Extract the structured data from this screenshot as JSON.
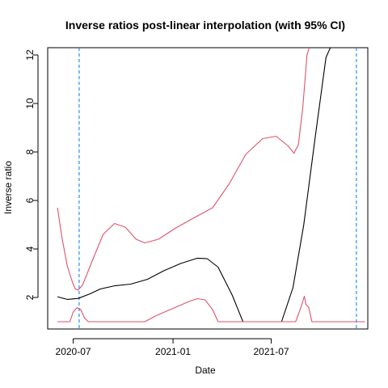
{
  "chart_data": {
    "type": "line",
    "title": "Inverse ratios post-linear interpolation (with 95% CI)",
    "xlabel": "Date",
    "ylabel": "Inverse ratio",
    "x_ticks": [
      "2020-07",
      "2021-01",
      "2021-07"
    ],
    "x_tick_dates": [
      "2020-07-01",
      "2021-01-01",
      "2021-07-01"
    ],
    "y_ticks": [
      "2",
      "4",
      "6",
      "8",
      "10",
      "12"
    ],
    "xlim": [
      "2020-05-15",
      "2021-12-26"
    ],
    "ylim": [
      0.7,
      12.3
    ],
    "grid": false,
    "legend": "none",
    "vlines": [
      {
        "x": "2020-07-12",
        "color": "#1E90FF",
        "style": "dashed"
      },
      {
        "x": "2021-12-05",
        "color": "#1E90FF",
        "style": "dashed"
      }
    ],
    "series": [
      {
        "color": "#000000",
        "points": [
          [
            "2020-06-02",
            2.03
          ],
          [
            "2020-06-20",
            1.92
          ],
          [
            "2020-07-10",
            1.96
          ],
          [
            "2020-08-01",
            2.15
          ],
          [
            "2020-08-20",
            2.35
          ],
          [
            "2020-09-15",
            2.48
          ],
          [
            "2020-10-15",
            2.55
          ],
          [
            "2020-11-15",
            2.75
          ],
          [
            "2020-12-15",
            3.1
          ],
          [
            "2021-01-15",
            3.4
          ],
          [
            "2021-02-15",
            3.62
          ],
          [
            "2021-03-05",
            3.6
          ],
          [
            "2021-03-25",
            3.25
          ],
          [
            "2021-04-20",
            2.1
          ],
          [
            "2021-05-10",
            1.0
          ],
          [
            "2021-07-20",
            1.0
          ],
          [
            "2021-08-10",
            2.4
          ],
          [
            "2021-08-30",
            5.0
          ],
          [
            "2021-09-20",
            8.6
          ],
          [
            "2021-10-10",
            11.9
          ],
          [
            "2021-10-20",
            12.4
          ]
        ]
      },
      {
        "color": "#DF536B",
        "points": [
          [
            "2020-06-02",
            5.7
          ],
          [
            "2020-06-10",
            4.5
          ],
          [
            "2020-06-20",
            3.3
          ],
          [
            "2020-06-30",
            2.6
          ],
          [
            "2020-07-05",
            2.35
          ],
          [
            "2020-07-10",
            2.3
          ],
          [
            "2020-07-18",
            2.5
          ],
          [
            "2020-08-05",
            3.5
          ],
          [
            "2020-08-25",
            4.6
          ],
          [
            "2020-09-15",
            5.05
          ],
          [
            "2020-10-05",
            4.9
          ],
          [
            "2020-10-25",
            4.4
          ],
          [
            "2020-11-10",
            4.25
          ],
          [
            "2020-12-05",
            4.4
          ],
          [
            "2021-01-05",
            4.85
          ],
          [
            "2021-02-10",
            5.3
          ],
          [
            "2021-03-15",
            5.7
          ],
          [
            "2021-04-15",
            6.7
          ],
          [
            "2021-05-15",
            7.9
          ],
          [
            "2021-06-15",
            8.55
          ],
          [
            "2021-07-10",
            8.65
          ],
          [
            "2021-08-01",
            8.25
          ],
          [
            "2021-08-12",
            7.95
          ],
          [
            "2021-08-20",
            8.3
          ],
          [
            "2021-08-28",
            9.8
          ],
          [
            "2021-09-05",
            12.0
          ],
          [
            "2021-09-12",
            12.5
          ]
        ]
      },
      {
        "color": "#DF536B",
        "points": [
          [
            "2020-06-02",
            1.0
          ],
          [
            "2020-06-25",
            1.0
          ],
          [
            "2020-07-01",
            1.4
          ],
          [
            "2020-07-08",
            1.58
          ],
          [
            "2020-07-15",
            1.5
          ],
          [
            "2020-07-22",
            1.15
          ],
          [
            "2020-07-29",
            1.0
          ],
          [
            "2020-11-10",
            1.0
          ],
          [
            "2020-12-01",
            1.25
          ],
          [
            "2021-01-01",
            1.55
          ],
          [
            "2021-02-01",
            1.85
          ],
          [
            "2021-02-15",
            1.95
          ],
          [
            "2021-03-01",
            1.9
          ],
          [
            "2021-03-15",
            1.5
          ],
          [
            "2021-03-25",
            1.0
          ],
          [
            "2021-08-15",
            1.0
          ],
          [
            "2021-08-25",
            1.6
          ],
          [
            "2021-08-31",
            2.05
          ],
          [
            "2021-09-03",
            1.7
          ],
          [
            "2021-09-08",
            1.6
          ],
          [
            "2021-09-14",
            1.0
          ],
          [
            "2021-12-21",
            1.0
          ]
        ]
      }
    ]
  }
}
